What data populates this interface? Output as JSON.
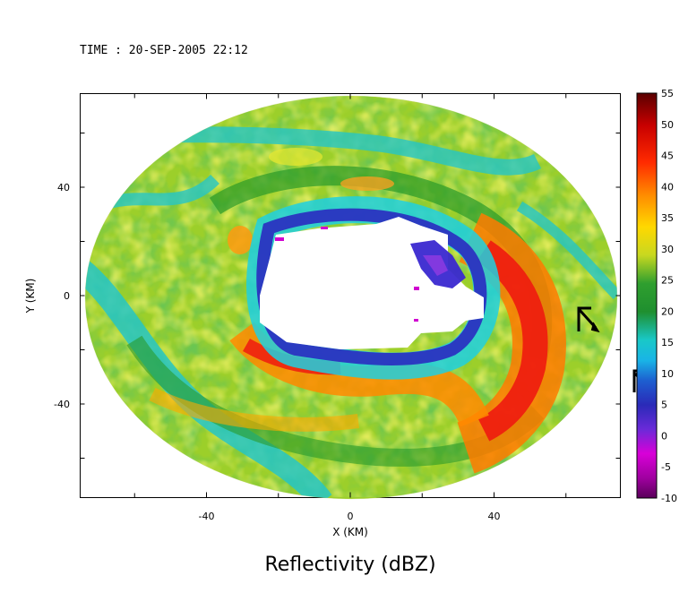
{
  "header": {
    "time_label": "TIME : 20-SEP-2005 22:12"
  },
  "chart_data": {
    "type": "heatmap",
    "title": "Reflectivity (dBZ)",
    "xlabel": "X (KM)",
    "ylabel": "Y (KM)",
    "xlim": [
      -75,
      75
    ],
    "ylim": [
      -57,
      55
    ],
    "x_ticks": [
      -40,
      0,
      40
    ],
    "y_ticks": [
      40,
      0,
      -40
    ],
    "x_tick_labels": [
      "-40",
      "0",
      "40"
    ],
    "y_tick_labels": [
      "40",
      "0",
      "-40"
    ],
    "grid": false,
    "colorbar": {
      "min": -10,
      "max": 55,
      "ticks": [
        "55",
        "50",
        "45",
        "40",
        "35",
        "30",
        "25",
        "20",
        "15",
        "10",
        "5",
        "0",
        "-5",
        "-10"
      ],
      "placement": "right"
    },
    "features": [
      {
        "name": "eye",
        "value": "no data",
        "center": [
          0,
          10
        ]
      },
      {
        "name": "eyewall_east",
        "value": 48,
        "center": [
          48,
          -10
        ]
      },
      {
        "name": "spiral_band_south",
        "value": 44,
        "center": [
          -15,
          -25
        ]
      },
      {
        "name": "outer_bands",
        "value": 32
      }
    ],
    "colors": {
      "magenta": "#c000c0",
      "blue": "#3333cc",
      "cyan": "#19c8c8",
      "green": "#1f8f1f",
      "yellow": "#e8e830",
      "orange": "#ff8a00",
      "red": "#e01010",
      "darkred": "#6a0000"
    }
  }
}
